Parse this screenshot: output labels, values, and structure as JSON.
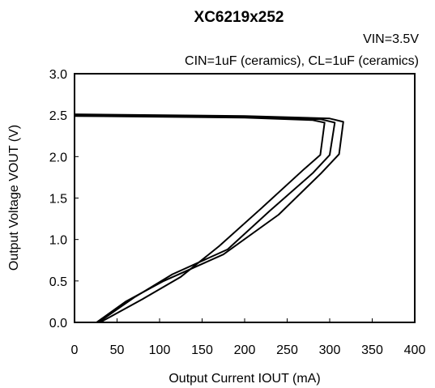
{
  "chart_data": {
    "type": "line",
    "title": "XC6219x252",
    "conditions": [
      "VIN=3.5V",
      "CIN=1uF (ceramics), CL=1uF (ceramics)"
    ],
    "xlabel": "Output Current IOUT (mA)",
    "ylabel": "Output Voltage VOUT (V)",
    "xlim": [
      0,
      400
    ],
    "ylim": [
      0,
      3.0
    ],
    "xticks": [
      0,
      50,
      100,
      150,
      200,
      250,
      300,
      350,
      400
    ],
    "yticks": [
      0.0,
      0.5,
      1.0,
      1.5,
      2.0,
      2.5,
      3.0
    ],
    "ytick_labels": [
      "0.0",
      "0.5",
      "1.0",
      "1.5",
      "2.0",
      "2.5",
      "3.0"
    ],
    "grid": false,
    "series": [
      {
        "points": [
          [
            0,
            2.49
          ],
          [
            200,
            2.47
          ],
          [
            280,
            2.44
          ],
          [
            294,
            2.41
          ],
          [
            289,
            2.02
          ],
          [
            270,
            1.85
          ],
          [
            220,
            1.38
          ],
          [
            170,
            0.92
          ],
          [
            125,
            0.55
          ],
          [
            80,
            0.28
          ],
          [
            30,
            0.0
          ]
        ]
      },
      {
        "points": [
          [
            0,
            2.5
          ],
          [
            200,
            2.48
          ],
          [
            290,
            2.45
          ],
          [
            306,
            2.41
          ],
          [
            300,
            2.02
          ],
          [
            280,
            1.8
          ],
          [
            230,
            1.35
          ],
          [
            180,
            0.88
          ],
          [
            115,
            0.58
          ],
          [
            70,
            0.3
          ],
          [
            28,
            0.0
          ]
        ]
      },
      {
        "points": [
          [
            0,
            2.51
          ],
          [
            200,
            2.49
          ],
          [
            300,
            2.46
          ],
          [
            316,
            2.42
          ],
          [
            311,
            2.03
          ],
          [
            290,
            1.8
          ],
          [
            240,
            1.3
          ],
          [
            175,
            0.82
          ],
          [
            105,
            0.5
          ],
          [
            60,
            0.25
          ],
          [
            26,
            0.0
          ]
        ]
      }
    ]
  }
}
